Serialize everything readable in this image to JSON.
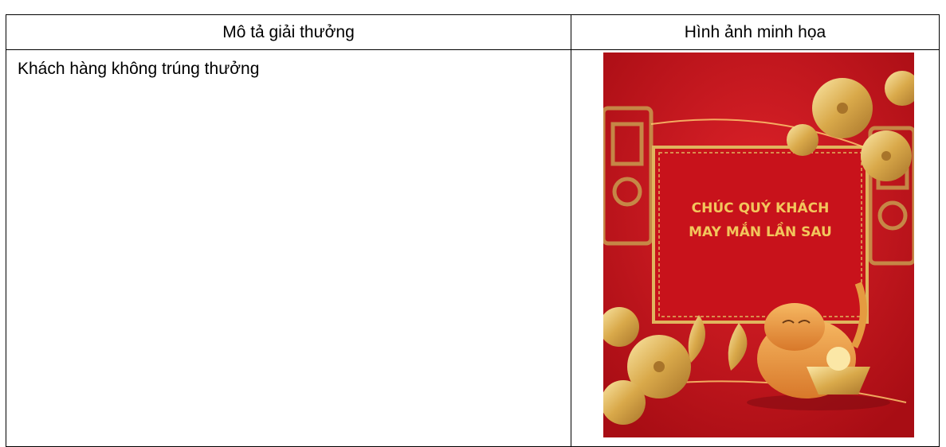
{
  "table": {
    "headers": [
      "Mô tả giải thưởng",
      "Hình ảnh minh họa"
    ],
    "rows": [
      {
        "description": "Khách hàng không trúng thưởng",
        "illustration": {
          "lines": [
            "CHÚC QUÝ KHÁCH",
            "MAY MẮN LẦN SAU"
          ]
        }
      }
    ]
  }
}
